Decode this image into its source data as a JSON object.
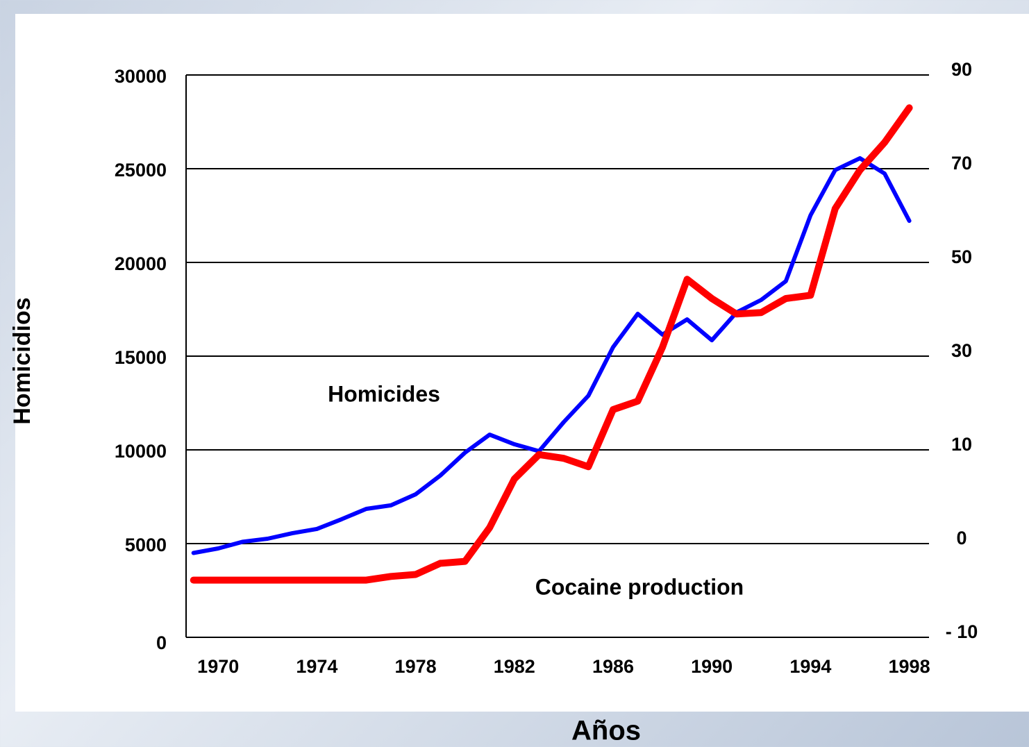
{
  "chart_data": {
    "type": "line",
    "x_label": "Años",
    "y_label": "Homicidios",
    "annotations": [
      "Homicides",
      "Cocaine production"
    ],
    "x": [
      1969,
      1970,
      1971,
      1972,
      1973,
      1974,
      1975,
      1976,
      1977,
      1978,
      1979,
      1980,
      1981,
      1982,
      1983,
      1984,
      1985,
      1986,
      1987,
      1988,
      1989,
      1990,
      1991,
      1992,
      1993,
      1994,
      1995,
      1996,
      1997,
      1998
    ],
    "series": [
      {
        "name": "Homicides",
        "color": "#0000ff",
        "axis": "y",
        "values": [
          4500,
          4740,
          5100,
          5260,
          5550,
          5780,
          6300,
          6850,
          7040,
          7630,
          8630,
          9850,
          10810,
          10300,
          9930,
          11480,
          12890,
          15480,
          17260,
          16150,
          16960,
          15850,
          17330,
          18000,
          19000,
          22520,
          24930,
          25560,
          24740,
          22220
        ]
      },
      {
        "name": "Cocaine production",
        "color": "#ff0000",
        "axis": "y2",
        "values": [
          -3.9,
          -3.9,
          -3.9,
          -3.9,
          -3.9,
          -3.9,
          -3.9,
          -3.9,
          -3.5,
          -3.3,
          -2.1,
          -1.9,
          1.7,
          6.9,
          9.5,
          9.1,
          8.2,
          18.6,
          20.4,
          31.9,
          46.4,
          42.3,
          39.0,
          39.3,
          42.3,
          43.0,
          61.5,
          69.7,
          75.6,
          83.0
        ]
      }
    ],
    "xlim": [
      1968.7,
      1998.8
    ],
    "xticks": [
      1970,
      1974,
      1978,
      1982,
      1986,
      1990,
      1994,
      1998
    ],
    "ylim": [
      0,
      30000
    ],
    "yticks": [
      0,
      5000,
      10000,
      15000,
      20000,
      25000,
      30000
    ],
    "y2lim": [
      -10,
      90
    ],
    "y2ticks": [
      {
        "value": -10,
        "label": "- 10"
      },
      0,
      10,
      30,
      50,
      70,
      90
    ],
    "grid": true
  }
}
